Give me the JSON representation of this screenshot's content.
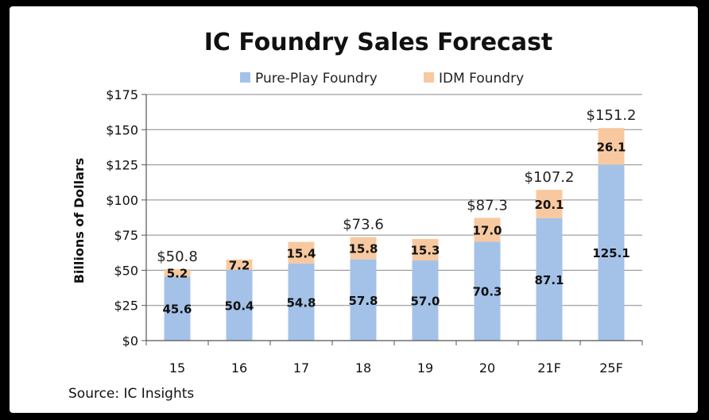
{
  "chart_data": {
    "type": "bar",
    "stacked": true,
    "title": "IC Foundry Sales Forecast",
    "ylabel": "Billions of Dollars",
    "xlabel": "",
    "ylim": [
      0,
      175
    ],
    "yticks": [
      0,
      25,
      50,
      75,
      100,
      125,
      150,
      175
    ],
    "ytick_labels": [
      "$0",
      "$25",
      "$50",
      "$75",
      "$100",
      "$125",
      "$150",
      "$175"
    ],
    "categories": [
      "15",
      "16",
      "17",
      "18",
      "19",
      "20",
      "21F",
      "25F"
    ],
    "series": [
      {
        "name": "Pure-Play Foundry",
        "color": "#a4c2e8",
        "values": [
          45.6,
          50.4,
          54.8,
          57.8,
          57.0,
          70.3,
          87.1,
          125.1
        ],
        "labels": [
          "45.6",
          "50.4",
          "54.8",
          "57.8",
          "57.0",
          "70.3",
          "87.1",
          "125.1"
        ]
      },
      {
        "name": "IDM Foundry",
        "color": "#f8c9a0",
        "values": [
          5.2,
          7.2,
          15.4,
          15.8,
          15.3,
          17.0,
          20.1,
          26.1
        ],
        "labels": [
          "5.2",
          "7.2",
          "15.4",
          "15.8",
          "15.3",
          "17.0",
          "20.1",
          "26.1"
        ]
      }
    ],
    "totals": [
      {
        "index": 0,
        "value": 50.8,
        "label": "$50.8"
      },
      {
        "index": 3,
        "value": 73.6,
        "label": "$73.6"
      },
      {
        "index": 5,
        "value": 87.3,
        "label": "$87.3"
      },
      {
        "index": 6,
        "value": 107.2,
        "label": "$107.2"
      },
      {
        "index": 7,
        "value": 151.2,
        "label": "$151.2"
      }
    ],
    "grid": true,
    "legend": "top",
    "source": "Source:  IC Insights"
  }
}
